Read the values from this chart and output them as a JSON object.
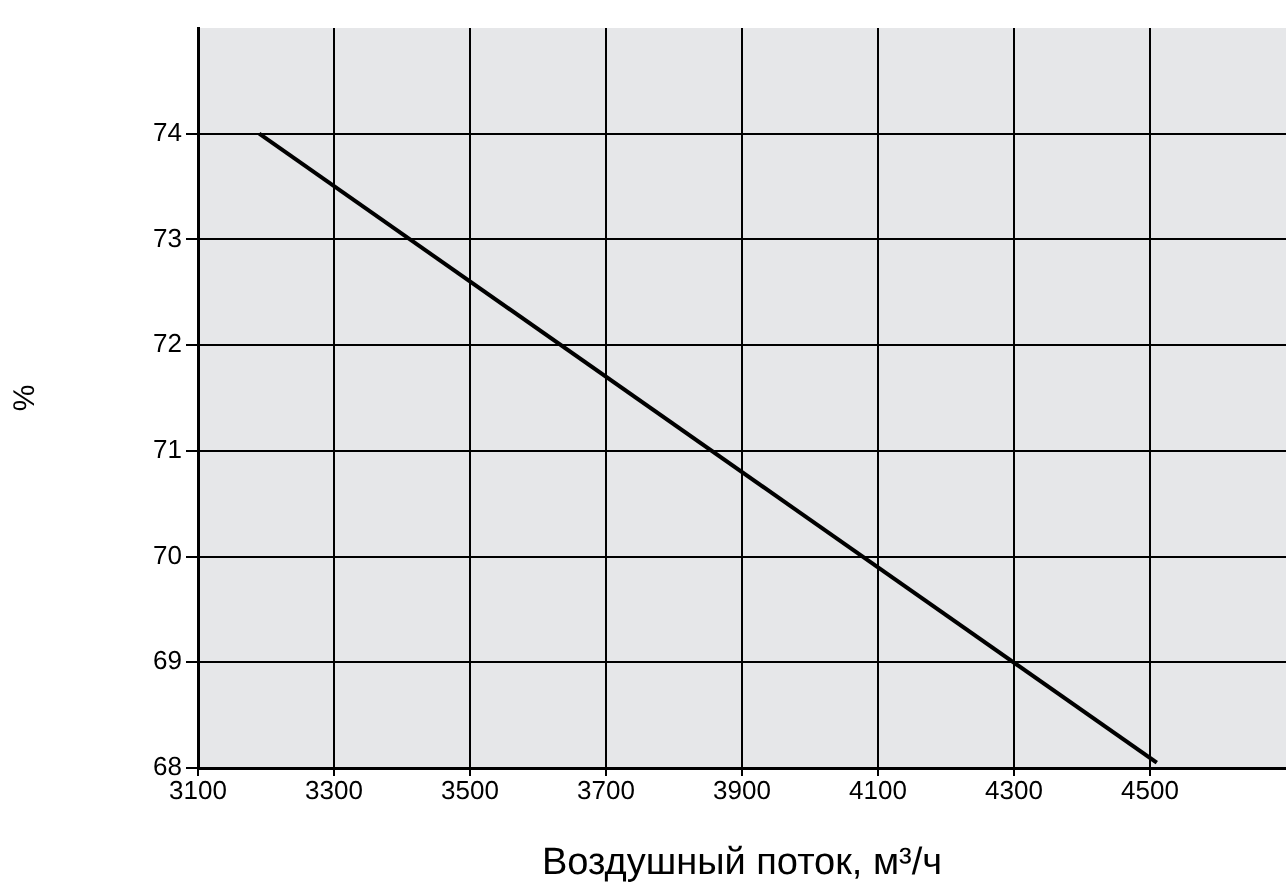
{
  "chart_data": {
    "type": "line",
    "xlabel": "Воздушный поток, м³/ч",
    "ylabel": "%",
    "series": [
      {
        "color": "#000000",
        "x": [
          3190,
          4510
        ],
        "values": [
          74,
          68.05
        ]
      }
    ],
    "xlim": [
      3100,
      4700
    ],
    "xticks": [
      3100,
      3300,
      3500,
      3700,
      3900,
      4100,
      4300,
      4500
    ],
    "ylim": [
      68,
      75
    ],
    "yticks": [
      68,
      69,
      70,
      71,
      72,
      73,
      74
    ],
    "grid": true,
    "legend": false,
    "marker": "none",
    "line_style": "solid"
  }
}
